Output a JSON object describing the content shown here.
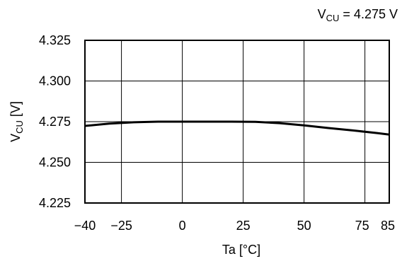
{
  "chart_data": {
    "type": "line",
    "annotation": {
      "symbol": "V",
      "subscript": "CU",
      "text": " = 4.275 V"
    },
    "ylabel": {
      "symbol": "V",
      "subscript": "CU",
      "unit": " [V]"
    },
    "xlabel": "Ta [°C]",
    "xlim": [
      -40,
      85
    ],
    "ylim": [
      4.225,
      4.325
    ],
    "x_ticks": [
      -40,
      -25,
      0,
      25,
      50,
      75,
      85
    ],
    "x_tick_labels": [
      "−40",
      "−25",
      "0",
      "25",
      "50",
      "75",
      "85"
    ],
    "y_ticks": [
      4.225,
      4.25,
      4.275,
      4.3,
      4.325
    ],
    "y_tick_labels": [
      "4.225",
      "4.250",
      "4.275",
      "4.300",
      "4.325"
    ],
    "x_grid": [
      -40,
      -25,
      0,
      25,
      50,
      75,
      85
    ],
    "grid": true,
    "series": [
      {
        "color": "#000000",
        "x": [
          -40,
          -30,
          -20,
          -10,
          0,
          10,
          20,
          30,
          40,
          50,
          60,
          70,
          80,
          85
        ],
        "y": [
          4.2724,
          4.2738,
          4.2746,
          4.275,
          4.275,
          4.275,
          4.275,
          4.2749,
          4.2741,
          4.2727,
          4.2711,
          4.2696,
          4.268,
          4.2671
        ]
      }
    ]
  }
}
